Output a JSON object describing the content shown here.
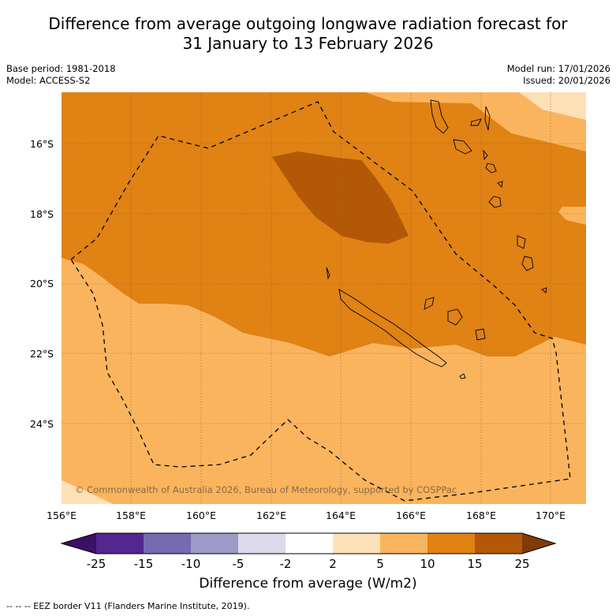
{
  "title_line1": "Difference from average outgoing longwave radiation forecast for",
  "title_line2": "31 January to 13 February 2026",
  "base_period": "Base period: 1981-2018",
  "model": "Model: ACCESS-S2",
  "model_run": "Model run: 17/01/2026",
  "issued": "Issued: 20/01/2026",
  "copyright": "© Commonwealth of Australia 2026, Bureau of Meteorology, supported by COSPPac",
  "lat_labels": [
    "16°S",
    "18°S",
    "20°S",
    "22°S",
    "24°S"
  ],
  "lon_labels": [
    "156°E",
    "158°E",
    "160°E",
    "162°E",
    "164°E",
    "166°E",
    "168°E",
    "170°E"
  ],
  "colorbar": {
    "ticks": [
      "-25",
      "-15",
      "-10",
      "-5",
      "-2",
      "2",
      "5",
      "10",
      "15",
      "25"
    ],
    "colors": [
      "#3b1166",
      "#54278f",
      "#756bb1",
      "#9e9ac8",
      "#dadaeb",
      "#ffffff",
      "#fee0b6",
      "#fbb45e",
      "#e08214",
      "#b35806",
      "#7f3b08"
    ],
    "label": "Difference from average (W/m2)"
  },
  "footer": "--  --  -- EEZ border V11 (Flanders Marine Institute, 2019)."
}
